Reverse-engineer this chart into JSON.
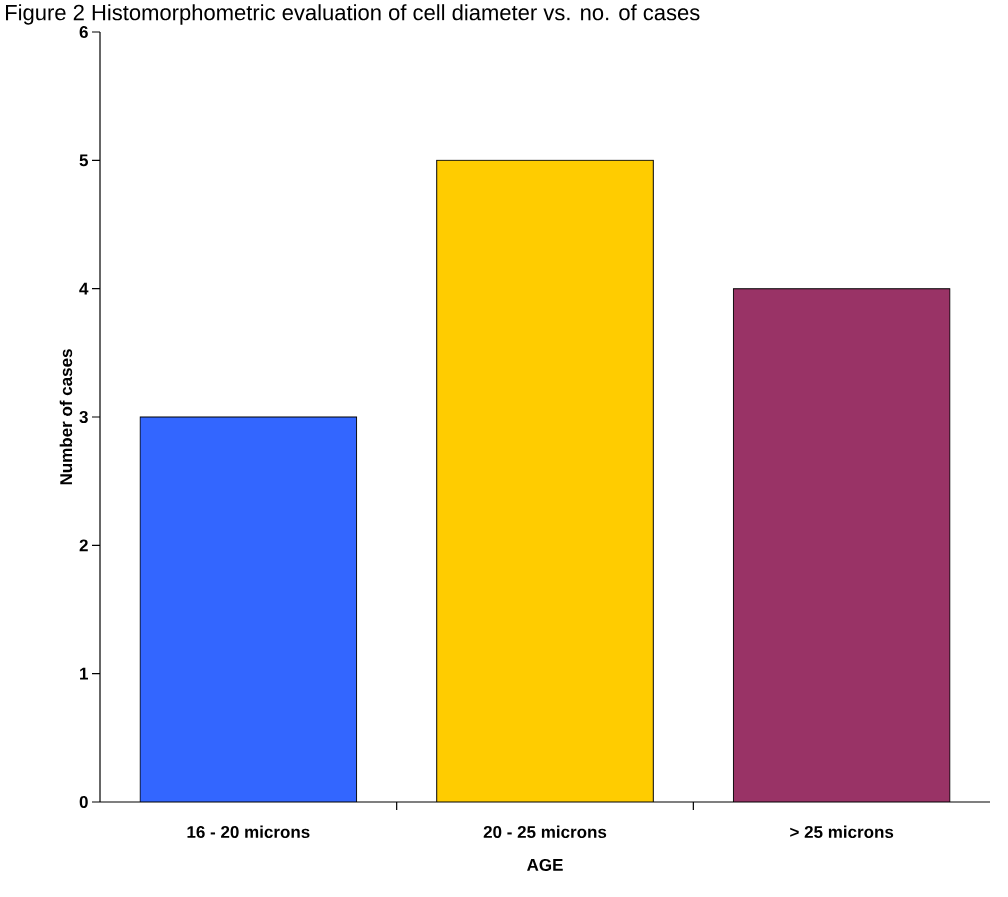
{
  "chart_data": {
    "type": "bar",
    "title": "Figure 2 Histomorphometric evaluation of cell diameter vs. no. of cases",
    "xlabel": "AGE",
    "ylabel": "Number of cases",
    "categories": [
      "16 - 20 microns",
      "20 - 25 microns",
      "> 25 microns"
    ],
    "values": [
      3,
      5,
      4
    ],
    "colors": [
      "#3366ff",
      "#ffcc00",
      "#993366"
    ],
    "ylim": [
      0,
      6
    ],
    "yticks": [
      0,
      1,
      2,
      3,
      4,
      5,
      6
    ],
    "grid": false
  }
}
